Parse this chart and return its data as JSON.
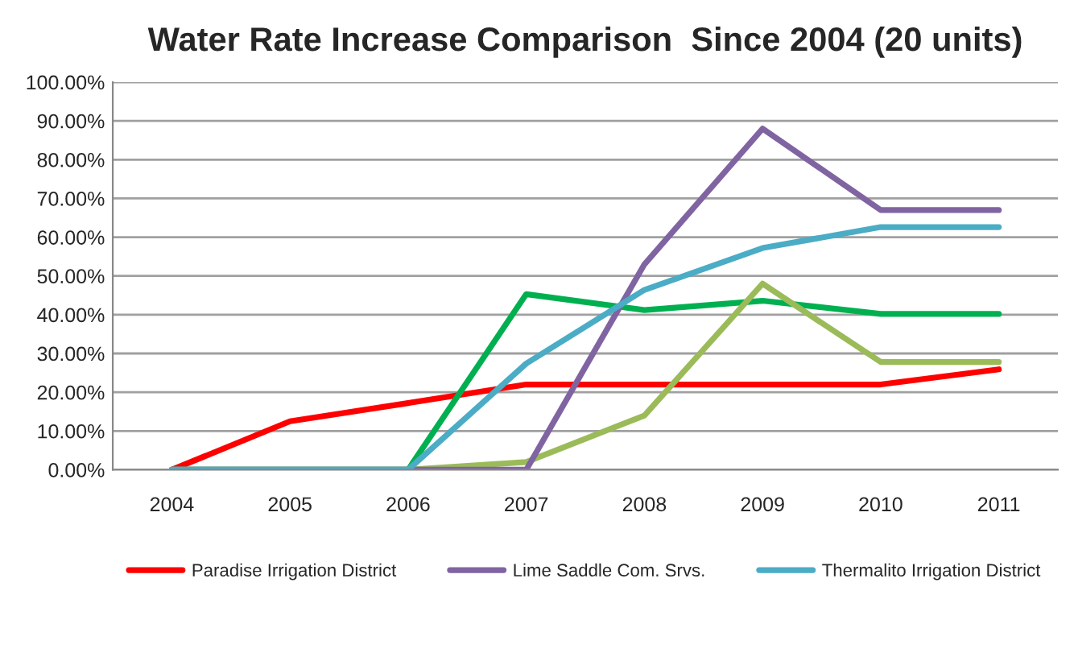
{
  "chart_data": {
    "type": "line",
    "title": "Water Rate Increase Comparison  Since 2004 (20 units)",
    "categories": [
      "2004",
      "2005",
      "2006",
      "2007",
      "2008",
      "2009",
      "2010",
      "2011"
    ],
    "series": [
      {
        "name": "Paradise Irrigation District",
        "color": "#ff0000",
        "values": [
          0,
          12.5,
          17.2,
          22,
          22,
          22,
          22,
          25.9
        ]
      },
      {
        "color": "#00b050",
        "values": [
          0,
          0,
          0,
          45.3,
          41.2,
          43.6,
          40.2,
          40.2
        ]
      },
      {
        "color": "#9bbb59",
        "values": [
          0,
          0,
          0,
          2,
          14,
          48,
          27.8,
          27.8
        ]
      },
      {
        "name": "Lime Saddle Com. Srvs.",
        "color": "#8064a2",
        "values": [
          0,
          0,
          0,
          0,
          53,
          88,
          67,
          67
        ]
      },
      {
        "name": "Thermalito Irrigation District",
        "color": "#4bacc6",
        "values": [
          0,
          0,
          0,
          27.4,
          46.4,
          57.2,
          62.6,
          62.6
        ]
      }
    ],
    "ylim": [
      0,
      100
    ],
    "yticks": [
      {
        "value": 0,
        "label": "0.00%"
      },
      {
        "value": 10,
        "label": "10.00%"
      },
      {
        "value": 20,
        "label": "20.00%"
      },
      {
        "value": 30,
        "label": "30.00%"
      },
      {
        "value": 40,
        "label": "40.00%"
      },
      {
        "value": 50,
        "label": "50.00%"
      },
      {
        "value": 60,
        "label": "60.00%"
      },
      {
        "value": 70,
        "label": "70.00%"
      },
      {
        "value": 80,
        "label": "80.00%"
      },
      {
        "value": 90,
        "label": "90.00%"
      },
      {
        "value": 100,
        "label": "100.00%"
      }
    ],
    "grid": "y",
    "legend": "bottom",
    "marker": "none",
    "line_style": "solid"
  }
}
